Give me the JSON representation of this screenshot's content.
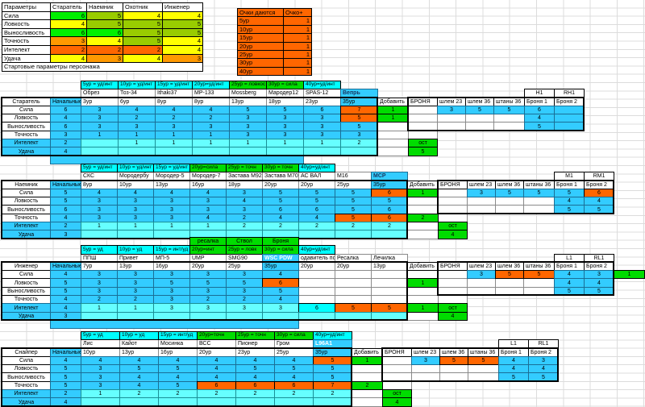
{
  "colors": {
    "body_blue": "#33CCFF",
    "light_cyan": "#66FFFF",
    "header_cyan": "#00FFFF",
    "green": "#00DC00",
    "bright_green": "#00F000",
    "yellow_green": "#99CC00",
    "yellow": "#FFFF00",
    "orange": "#FF6600",
    "orange2": "#FF9900",
    "special_navy": "#17365D"
  },
  "params_table": {
    "headers": [
      "Параметры",
      "Старатель",
      "Наемник",
      "Охотник",
      "Инженер"
    ],
    "rows": [
      {
        "label": "Сила",
        "cells": [
          [
            6,
            "bg"
          ],
          [
            5,
            "yg"
          ],
          [
            4,
            "yl"
          ],
          [
            4,
            "yl"
          ]
        ]
      },
      {
        "label": "Ловкость",
        "cells": [
          [
            4,
            "yl"
          ],
          [
            5,
            "yg"
          ],
          [
            5,
            "yg"
          ],
          [
            5,
            "yg"
          ]
        ]
      },
      {
        "label": "Выносливость",
        "cells": [
          [
            6,
            "bg"
          ],
          [
            6,
            "bg"
          ],
          [
            5,
            "yg"
          ],
          [
            5,
            "yg"
          ]
        ]
      },
      {
        "label": "Точность",
        "cells": [
          [
            3,
            "o2"
          ],
          [
            4,
            "yl"
          ],
          [
            5,
            "yg"
          ],
          [
            4,
            "yl"
          ]
        ]
      },
      {
        "label": "Интелект",
        "cells": [
          [
            2,
            "or"
          ],
          [
            2,
            "or"
          ],
          [
            2,
            "or"
          ],
          [
            4,
            "yl"
          ]
        ]
      },
      {
        "label": "Удача",
        "cells": [
          [
            4,
            "yl"
          ],
          [
            3,
            "o2"
          ],
          [
            4,
            "yl"
          ],
          [
            3,
            "o2"
          ]
        ]
      }
    ],
    "footer": "Стартовые параметры персонажа"
  },
  "points_table": {
    "headers": [
      "Очки даются",
      "Очко+"
    ],
    "rows": [
      [
        "5ур",
        1
      ],
      [
        "10ур",
        1
      ],
      [
        "15ур",
        1
      ],
      [
        "20ур",
        1
      ],
      [
        "25ур",
        1
      ],
      [
        "30ур",
        1
      ],
      [
        "40ур",
        1
      ]
    ]
  },
  "sections": [
    {
      "name": "Старатель",
      "initial_label": "Начальные",
      "add_label": "Добавить",
      "armor_label": "БРОНЯ",
      "armor_titles": [
        "H1",
        "RH1"
      ],
      "armor_headers": [
        "шлем 23",
        "шлем 36",
        "штаны 36",
        "Броня 1",
        "Броня 2"
      ],
      "pre": null,
      "bonus": [
        [
          "5ур = уд/инт",
          "cy"
        ],
        [
          "10ур = уд/инт",
          "cy"
        ],
        [
          "15ур = уд/инт",
          "cy"
        ],
        [
          "20ур=уд/инт",
          "cy"
        ],
        [
          "25ур = ловкос",
          "gr"
        ],
        [
          "30ур = сила",
          "gr"
        ],
        [
          "40ур=уд/инт",
          "cy"
        ],
        null
      ],
      "weapons": [
        [
          "Обрез",
          "3ур"
        ],
        [
          "Тоз-34",
          "6ур"
        ],
        [
          "Ithaki37",
          "8ур"
        ],
        [
          "МР-133",
          "8ур"
        ],
        [
          "Mossberg",
          "13ур"
        ],
        [
          "Мародер12",
          "18ур"
        ],
        [
          "SPAS-12",
          "23ур"
        ],
        [
          "Вепрь",
          "35ур",
          "sp"
        ]
      ],
      "sp_color": "#17365D",
      "stats": [
        {
          "label": "Сила",
          "lc": "w",
          "rc": "bl",
          "init": 6,
          "vals": [
            3,
            4,
            4,
            4,
            5,
            5,
            6,
            [
              7,
              "or"
            ]
          ],
          "add": 1,
          "armor": [
            "",
            [
              3
            ],
            [
              5
            ],
            [
              5
            ],
            [
              6
            ],
            [
              "",
              "bl"
            ]
          ]
        },
        {
          "label": "Ловкость",
          "lc": "w",
          "rc": "bl",
          "init": 4,
          "vals": [
            3,
            2,
            2,
            2,
            3,
            3,
            3,
            [
              5,
              "or"
            ]
          ],
          "add": 1,
          "armor": [
            "",
            "",
            "",
            "",
            [
              4
            ],
            [
              "",
              "bl"
            ]
          ]
        },
        {
          "label": "Выносливость",
          "lc": "w",
          "rc": "bl",
          "init": 6,
          "vals": [
            3,
            3,
            3,
            3,
            3,
            3,
            3,
            5
          ],
          "add": null,
          "armor": [
            "",
            "",
            "",
            "",
            [
              5
            ],
            [
              "",
              "bl"
            ]
          ]
        },
        {
          "label": "Точность",
          "lc": "w",
          "rc": "bl",
          "init": 3,
          "vals": [
            1,
            1,
            1,
            1,
            3,
            3,
            3,
            3
          ],
          "add": null,
          "armor": null
        },
        {
          "label": "Интелект",
          "lc": "bl",
          "rc": "lb",
          "init": 2,
          "vals": [
            "",
            1,
            1,
            1,
            1,
            1,
            1,
            2
          ],
          "add": null,
          "armor": null,
          "ost": "ост"
        },
        {
          "label": "Удача",
          "lc": "bl",
          "rc": "lb",
          "init": 4,
          "vals": [
            "",
            "",
            "",
            "",
            "",
            "",
            "",
            ""
          ],
          "add": null,
          "armor": null,
          "ost": "5"
        }
      ],
      "band": {
        "start": 1,
        "end": 7
      }
    },
    {
      "name": "Наемник",
      "initial_label": "Начальные",
      "add_label": "Добавить",
      "armor_label": "БРОНЯ",
      "armor_titles": [
        "M1",
        "RM1"
      ],
      "armor_headers": [
        "шлем 23",
        "шлем 36",
        "штаны 36",
        "Броня 1",
        "Броня 2"
      ],
      "pre": null,
      "bonus": [
        [
          "5ур = уд/инт",
          "cy"
        ],
        [
          "10ур = уд/инт",
          "cy"
        ],
        [
          "15ур = уд/инт",
          "cy"
        ],
        [
          "20ур=сила",
          "gr"
        ],
        [
          "25ур = точн",
          "gr"
        ],
        [
          "30ур = точн",
          "gr"
        ],
        [
          "40ур=уд/инт",
          "cy"
        ],
        null,
        null
      ],
      "weapons": [
        [
          "СКС",
          "8ур"
        ],
        [
          "Мородербу",
          "10ур"
        ],
        [
          "Мородер-5",
          "13ур"
        ],
        [
          "Мородер-7",
          "16ур"
        ],
        [
          "Застава М92",
          "18ур"
        ],
        [
          "Застава М70",
          "20ур"
        ],
        [
          "АС ВАЛ",
          "20ур"
        ],
        [
          "М16",
          "25ур"
        ],
        [
          "МСР",
          "35ур",
          "sp"
        ]
      ],
      "sp_color": "#17365D",
      "stats": [
        {
          "label": "Сила",
          "lc": "w",
          "rc": "bl",
          "init": 5,
          "vals": [
            4,
            4,
            4,
            4,
            3,
            5,
            5,
            5,
            [
              6,
              "or"
            ]
          ],
          "add": 1,
          "armor": [
            "",
            [
              3
            ],
            [
              5
            ],
            [
              5
            ],
            [
              5
            ],
            [
              6,
              "or"
            ]
          ]
        },
        {
          "label": "Ловкость",
          "lc": "w",
          "rc": "bl",
          "init": 5,
          "vals": [
            3,
            3,
            3,
            3,
            4,
            5,
            5,
            5,
            5
          ],
          "add": null,
          "armor": [
            "",
            "",
            "",
            "",
            [
              4
            ],
            [
              4
            ]
          ]
        },
        {
          "label": "Выносливость",
          "lc": "w",
          "rc": "bl",
          "init": 6,
          "vals": [
            3,
            3,
            3,
            3,
            3,
            6,
            6,
            5,
            6
          ],
          "add": null,
          "armor": [
            "",
            "",
            "",
            "",
            [
              5
            ],
            [
              5
            ]
          ]
        },
        {
          "label": "Точность",
          "lc": "w",
          "rc": "bl",
          "init": 4,
          "vals": [
            3,
            3,
            3,
            4,
            2,
            4,
            4,
            [
              5,
              "or"
            ],
            [
              6,
              "or"
            ]
          ],
          "add": 2,
          "armor": null
        },
        {
          "label": "Интелект",
          "lc": "bl",
          "rc": "lb",
          "init": 2,
          "vals": [
            1,
            1,
            1,
            1,
            2,
            2,
            2,
            2,
            2
          ],
          "add": null,
          "armor": null,
          "ost": "ост"
        },
        {
          "label": "Удача",
          "lc": "bl",
          "rc": "lb",
          "init": 3,
          "vals": [
            "",
            "",
            "",
            "",
            "",
            "",
            "",
            "",
            ""
          ],
          "add": null,
          "armor": null,
          "ost": "4"
        }
      ],
      "band": null
    },
    {
      "name": "Инженер",
      "initial_label": "Начальные",
      "add_label": "Добавить",
      "armor_label": "БРОНЯ",
      "armor_titles": [
        "L1",
        "RL1"
      ],
      "armor_headers": [
        "шлем 23",
        "шлем 36",
        "штаны 36",
        "Броня 1",
        "Броня 2"
      ],
      "pre": [
        [
          3,
          "ресалка"
        ],
        [
          4,
          "Ствол"
        ],
        [
          5,
          "Броня"
        ]
      ],
      "bonus": [
        [
          "5ур = уд",
          "cy"
        ],
        [
          "10ур = уд",
          "cy"
        ],
        [
          "15ур = инт/уд",
          "cy"
        ],
        [
          "20ур=инт",
          "gr"
        ],
        [
          "25ур = ловк",
          "gr"
        ],
        [
          "30ур = сила",
          "gr"
        ],
        [
          "40ур=уд/инт",
          "cy"
        ],
        null,
        null
      ],
      "weapons": [
        [
          "ППШ",
          "7ур"
        ],
        [
          "Привет",
          "13ур"
        ],
        [
          "МП-5",
          "16ур"
        ],
        [
          "UMP",
          "20ур"
        ],
        [
          "SMG90",
          "25ур"
        ],
        [
          "WSC PDW",
          "35ур",
          "sp"
        ],
        [
          "одавитель пог",
          "20ур"
        ],
        [
          "Ресалка",
          "20ур"
        ],
        [
          "Лечилка",
          "13ур"
        ]
      ],
      "sp_color": "#FFFFFF",
      "stats": [
        {
          "label": "Сила",
          "lc": "w",
          "rc": "bl",
          "init": 4,
          "vals": [
            3,
            3,
            3,
            3,
            3,
            4,
            "-",
            "-",
            "-"
          ],
          "add": null,
          "armor": [
            "",
            [
              3
            ],
            [
              5,
              "or"
            ],
            [
              5,
              "or"
            ],
            [
              4
            ],
            [
              3
            ]
          ],
          "extra": 1
        },
        {
          "label": "Ловкость",
          "lc": "w",
          "rc": "bl",
          "init": 5,
          "vals": [
            3,
            3,
            5,
            5,
            5,
            [
              6,
              "or"
            ],
            "-",
            "-",
            "-"
          ],
          "add": 1,
          "armor": [
            "",
            "",
            "",
            "",
            [
              4
            ],
            [
              4
            ]
          ]
        },
        {
          "label": "Выносливость",
          "lc": "w",
          "rc": "bl",
          "init": 5,
          "vals": [
            3,
            3,
            3,
            3,
            3,
            5,
            "-",
            "-",
            "-"
          ],
          "add": null,
          "armor": [
            "",
            "",
            "",
            "",
            [
              5
            ],
            [
              5
            ]
          ]
        },
        {
          "label": "Точность",
          "lc": "w",
          "rc": "bl",
          "init": 4,
          "vals": [
            2,
            2,
            3,
            2,
            2,
            4,
            "-",
            "-",
            "-"
          ],
          "add": null,
          "armor": null
        },
        {
          "label": "Интелект",
          "lc": "bl",
          "rc": "lb",
          "init": 4,
          "vals": [
            1,
            1,
            3,
            3,
            3,
            3,
            [
              6,
              "cy"
            ],
            [
              5,
              "or"
            ],
            [
              5,
              "or"
            ]
          ],
          "add": 1,
          "armor": null,
          "ost": "ост"
        },
        {
          "label": "Удача",
          "lc": "bl",
          "rc": "lb",
          "init": 3,
          "vals": [
            "",
            "",
            "",
            "",
            "",
            "",
            "",
            "",
            ""
          ],
          "add": null,
          "armor": null,
          "ost": "4"
        }
      ],
      "band": {
        "start": 1,
        "end": 7
      }
    },
    {
      "name": "Снайпер",
      "initial_label": "Начальные",
      "add_label": "Добавить",
      "armor_label": "БРОНЯ",
      "armor_titles": [
        "L1",
        "RL1"
      ],
      "armor_headers": [
        "шлем 23",
        "шлем 36",
        "штаны 36",
        "Броня 1",
        "Броня 2"
      ],
      "pre": null,
      "bonus": [
        [
          "5ур = уд",
          "cy"
        ],
        [
          "10ур = уд",
          "cy"
        ],
        [
          "15ур = инт/уд",
          "cy"
        ],
        [
          "20ур=точн",
          "gr"
        ],
        [
          "25ур = точн",
          "gr"
        ],
        [
          "30ур = сила",
          "gr"
        ],
        [
          "40ур=уд/инт",
          "cy"
        ]
      ],
      "weapons": [
        [
          "Лис",
          "10ур"
        ],
        [
          "Кайот",
          "13ур"
        ],
        [
          "Мосинка",
          "16ур"
        ],
        [
          "ВСС",
          "20ур"
        ],
        [
          "Пионер",
          "23ур"
        ],
        [
          "Гром",
          "25ур"
        ],
        [
          "L96A1",
          "35ур",
          "sp"
        ]
      ],
      "sp_color": "#FFFFFF",
      "stats": [
        {
          "label": "Сила",
          "lc": "w",
          "rc": "bl",
          "init": 4,
          "vals": [
            4,
            4,
            4,
            4,
            4,
            4,
            [
              5,
              "or"
            ]
          ],
          "add": 1,
          "armor": [
            "",
            [
              3
            ],
            [
              5,
              "or"
            ],
            [
              5,
              "or"
            ],
            [
              4
            ],
            [
              3
            ]
          ]
        },
        {
          "label": "Ловкость",
          "lc": "w",
          "rc": "bl",
          "init": 5,
          "vals": [
            3,
            5,
            5,
            4,
            5,
            5,
            5
          ],
          "add": null,
          "armor": [
            "",
            "",
            "",
            "",
            [
              4
            ],
            [
              4
            ]
          ]
        },
        {
          "label": "Выносливость",
          "lc": "w",
          "rc": "bl",
          "init": 5,
          "vals": [
            3,
            4,
            4,
            4,
            4,
            4,
            5
          ],
          "add": null,
          "armor": [
            "",
            "",
            "",
            "",
            [
              5
            ],
            [
              5
            ]
          ]
        },
        {
          "label": "Точность",
          "lc": "w",
          "rc": "bl",
          "init": 5,
          "vals": [
            3,
            4,
            5,
            [
              6,
              "or"
            ],
            [
              6,
              "or"
            ],
            [
              6,
              "or"
            ],
            [
              7,
              "or"
            ]
          ],
          "add": 2,
          "armor": null
        },
        {
          "label": "Интелект",
          "lc": "bl",
          "rc": "lb",
          "init": 2,
          "vals": [
            1,
            2,
            2,
            2,
            2,
            2,
            2
          ],
          "add": null,
          "armor": null,
          "ost": "ост"
        },
        {
          "label": "Удача",
          "lc": "bl",
          "rc": "lb",
          "init": 4,
          "vals": [
            "",
            "",
            "",
            "",
            "",
            "",
            ""
          ],
          "add": null,
          "armor": null,
          "ost": "4"
        }
      ],
      "band": null
    }
  ]
}
